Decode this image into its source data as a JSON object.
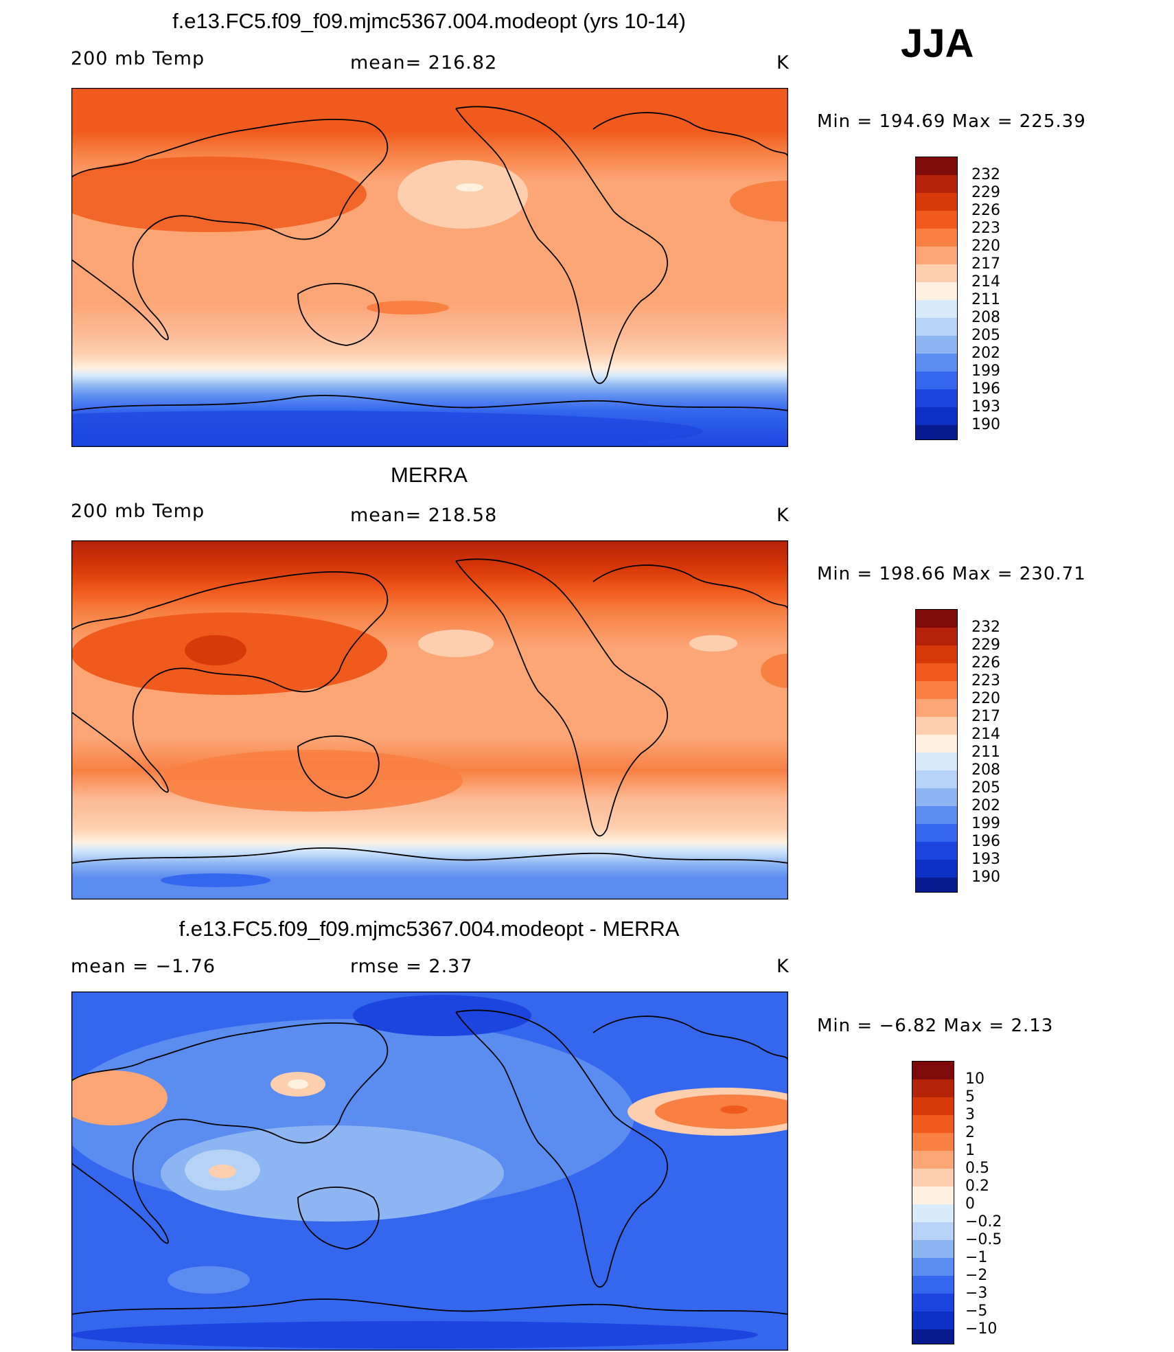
{
  "season": "JJA",
  "panels": [
    {
      "id": "model",
      "title": "f.e13.FC5.f09_f09.mjmc5367.004.modeopt (yrs 10-14)",
      "field": "200 mb Temp",
      "stat": "mean= 216.82",
      "units": "K",
      "minmax": "Min = 194.69 Max = 225.39",
      "colorbar": {
        "labels": [
          "232",
          "229",
          "226",
          "223",
          "220",
          "217",
          "214",
          "211",
          "208",
          "205",
          "202",
          "199",
          "196",
          "193",
          "190"
        ],
        "colors": [
          "#7f0a0a",
          "#b5220a",
          "#d83908",
          "#f05a1c",
          "#f88043",
          "#fca676",
          "#fdcfae",
          "#fff0e0",
          "#d8ebfb",
          "#b6d2f7",
          "#8db5f2",
          "#5b8cf0",
          "#3466ee",
          "#1c45e0",
          "#0c2fc4",
          "#071a8e"
        ]
      }
    },
    {
      "id": "obs",
      "title": "MERRA",
      "field": "200 mb Temp",
      "stat": "mean= 218.58",
      "units": "K",
      "minmax": "Min = 198.66 Max = 230.71",
      "colorbar": {
        "labels": [
          "232",
          "229",
          "226",
          "223",
          "220",
          "217",
          "214",
          "211",
          "208",
          "205",
          "202",
          "199",
          "196",
          "193",
          "190"
        ],
        "colors": [
          "#7f0a0a",
          "#b5220a",
          "#d83908",
          "#f05a1c",
          "#f88043",
          "#fca676",
          "#fdcfae",
          "#fff0e0",
          "#d8ebfb",
          "#b6d2f7",
          "#8db5f2",
          "#5b8cf0",
          "#3466ee",
          "#1c45e0",
          "#0c2fc4",
          "#071a8e"
        ]
      }
    },
    {
      "id": "diff",
      "title": "f.e13.FC5.f09_f09.mjmc5367.004.modeopt - MERRA",
      "field": "mean =   −1.76",
      "stat": "rmse =    2.37",
      "units": "K",
      "minmax": "Min =  −6.82 Max =    2.13",
      "colorbar": {
        "labels": [
          "10",
          "5",
          "3",
          "2",
          "1",
          "0.5",
          "0.2",
          "0",
          "−0.2",
          "−0.5",
          "−1",
          "−2",
          "−3",
          "−5",
          "−10"
        ],
        "colors": [
          "#7f0a0a",
          "#b5220a",
          "#d83908",
          "#f05a1c",
          "#f88043",
          "#fca676",
          "#fdcfae",
          "#fff0e0",
          "#d8ebfb",
          "#b6d2f7",
          "#8db5f2",
          "#5b8cf0",
          "#3466ee",
          "#1c45e0",
          "#0c2fc4",
          "#071a8e"
        ]
      }
    }
  ]
}
